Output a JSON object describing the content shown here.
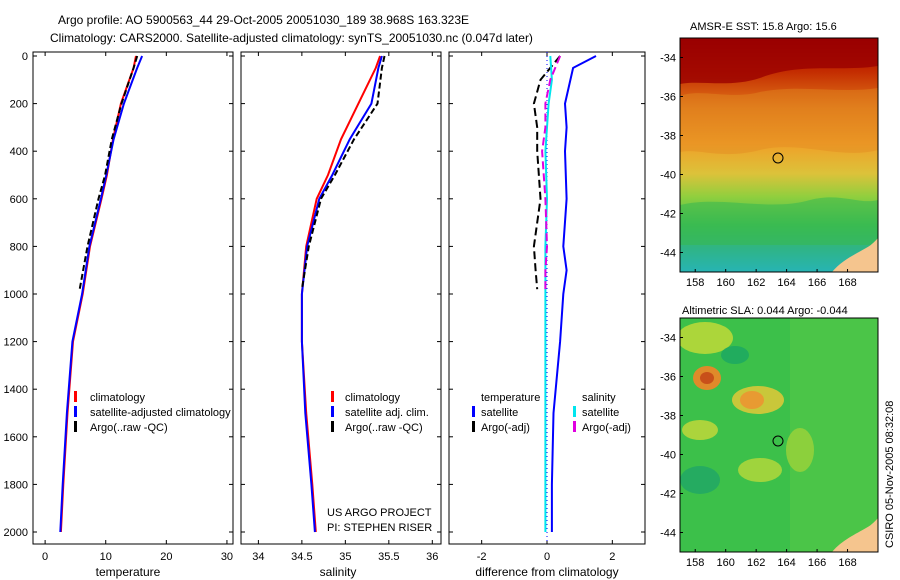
{
  "header": {
    "line1": "Argo profile: AO 5900563_44 29-Oct-2005 20051030_189 38.968S 163.323E",
    "line2": "Climatology: CARS2000. Satellite-adjusted climatology: synTS_20051030.nc (0.047d later)"
  },
  "credit": {
    "line1": "US ARGO PROJECT",
    "line2": "PI: STEPHEN RISER"
  },
  "side_label": "CSIRO 05-Nov-2005 08:32:08",
  "colors": {
    "climatology": "#ff0000",
    "satellite": "#0000ff",
    "argo": "#000000",
    "sat_diff_temp": "#0000ff",
    "sat_diff_sal": "#00e5ee",
    "argo_diff_sal": "#e000e0"
  },
  "chart_data": [
    {
      "type": "line",
      "panel": "temperature",
      "xlabel": "temperature",
      "ylabel": "",
      "xlim": [
        -2,
        31
      ],
      "ylim": [
        2050,
        0
      ],
      "xticks": [
        0,
        10,
        20,
        30
      ],
      "yticks": [
        0,
        200,
        400,
        600,
        800,
        1000,
        1200,
        1400,
        1600,
        1800,
        2000
      ],
      "series": [
        {
          "name": "climatology",
          "x": [
            15.0,
            14.6,
            12.5,
            11.2,
            10.2,
            9.3,
            7.4,
            6.2,
            4.6,
            3.7,
            3.0,
            2.6
          ],
          "y": [
            0,
            50,
            200,
            350,
            500,
            600,
            800,
            1000,
            1200,
            1500,
            1800,
            2000
          ]
        },
        {
          "name": "satellite-adjusted climatology",
          "x": [
            16.0,
            15.2,
            13.0,
            11.3,
            10.1,
            9.2,
            7.3,
            6.1,
            4.5,
            3.6,
            2.9,
            2.5
          ],
          "y": [
            0,
            50,
            200,
            350,
            500,
            600,
            800,
            1000,
            1200,
            1500,
            1800,
            2000
          ]
        },
        {
          "name": "Argo(..raw -QC)",
          "x": [
            15.2,
            14.6,
            12.6,
            11.0,
            9.9,
            8.8,
            7.0,
            5.7
          ],
          "y": [
            0,
            50,
            200,
            350,
            500,
            600,
            800,
            980
          ]
        }
      ],
      "legend": [
        "climatology",
        "satellite-adjusted climatology",
        "Argo(..raw -QC)"
      ]
    },
    {
      "type": "line",
      "panel": "salinity",
      "xlabel": "salinity",
      "ylabel": "",
      "xlim": [
        33.8,
        36.1
      ],
      "ylim": [
        2050,
        0
      ],
      "xticks": [
        34,
        34.5,
        35,
        35.5,
        36
      ],
      "tick_labels": [
        "34",
        "34.5",
        "35",
        "35.5",
        "36"
      ],
      "series": [
        {
          "name": "climatology",
          "x": [
            35.4,
            35.35,
            35.15,
            34.95,
            34.8,
            34.67,
            34.55,
            34.5,
            34.5,
            34.55,
            34.62,
            34.66
          ],
          "y": [
            0,
            50,
            200,
            350,
            500,
            600,
            800,
            1000,
            1200,
            1500,
            1800,
            2000
          ]
        },
        {
          "name": "satellite adj. clim.",
          "x": [
            35.42,
            35.38,
            35.3,
            35.05,
            34.85,
            34.7,
            34.56,
            34.5,
            34.5,
            34.54,
            34.61,
            34.65
          ],
          "y": [
            0,
            50,
            200,
            350,
            500,
            600,
            800,
            1000,
            1200,
            1500,
            1800,
            2000
          ]
        },
        {
          "name": "Argo(..raw -QC)",
          "x": [
            35.45,
            35.42,
            35.37,
            35.1,
            34.88,
            34.72,
            34.58,
            34.5
          ],
          "y": [
            0,
            50,
            200,
            350,
            500,
            600,
            800,
            980
          ]
        }
      ],
      "legend": [
        "climatology",
        "satellite adj. clim.",
        "Argo(..raw -QC)"
      ]
    },
    {
      "type": "line",
      "panel": "difference",
      "xlabel": "difference from climatology",
      "xlim": [
        -3,
        3
      ],
      "ylim": [
        2050,
        0
      ],
      "xticks": [
        -2,
        0,
        2
      ],
      "tick_labels": [
        "-2",
        "0",
        "2"
      ],
      "series": [
        {
          "name": "temperature satellite",
          "x": [
            1.5,
            0.8,
            0.55,
            0.6,
            0.55,
            0.6,
            0.5,
            0.6,
            0.5,
            0.4,
            0.2,
            0.15,
            0.15
          ],
          "y": [
            0,
            50,
            200,
            300,
            400,
            600,
            800,
            900,
            1000,
            1200,
            1500,
            1800,
            2000
          ]
        },
        {
          "name": "temperature Argo(-adj)",
          "x": [
            0.4,
            -0.2,
            -0.4,
            -0.3,
            -0.3,
            -0.2,
            -0.4,
            -0.35,
            -0.3
          ],
          "y": [
            0,
            100,
            200,
            300,
            400,
            600,
            800,
            900,
            980
          ]
        },
        {
          "name": "salinity satellite",
          "x": [
            0.1,
            0.15,
            0.05,
            -0.05,
            0.0,
            -0.05,
            -0.05,
            -0.05,
            -0.05,
            -0.05,
            -0.05
          ],
          "y": [
            0,
            100,
            200,
            400,
            600,
            800,
            1000,
            1200,
            1500,
            1800,
            2000
          ]
        },
        {
          "name": "salinity Argo(-adj)",
          "x": [
            0.4,
            0.1,
            -0.05,
            -0.05,
            -0.15,
            -0.05,
            0.0,
            -0.05,
            -0.05
          ],
          "y": [
            0,
            100,
            200,
            300,
            400,
            600,
            800,
            900,
            980
          ]
        }
      ],
      "legend_headers": [
        "temperature",
        "salinity"
      ],
      "legend": [
        "satellite",
        "Argo(-adj)",
        "satellite",
        "Argo(-adj)"
      ]
    },
    {
      "type": "heatmap",
      "panel": "sst_map",
      "title": "AMSR-E SST: 15.8 Argo: 15.6",
      "xlim": [
        157,
        170
      ],
      "ylim": [
        -45,
        -33
      ],
      "xticks": [
        158,
        160,
        162,
        164,
        166,
        168
      ],
      "yticks": [
        -34,
        -36,
        -38,
        -40,
        -42,
        -44
      ],
      "marker": {
        "lon": 163.323,
        "lat": -38.968
      }
    },
    {
      "type": "heatmap",
      "panel": "sla_map",
      "title": "Altimetric SLA: 0.044 Argo: -0.044",
      "xlim": [
        157,
        170
      ],
      "ylim": [
        -45,
        -33
      ],
      "xticks": [
        158,
        160,
        162,
        164,
        166,
        168
      ],
      "yticks": [
        -34,
        -36,
        -38,
        -40,
        -42,
        -44
      ],
      "marker": {
        "lon": 163.323,
        "lat": -38.968
      }
    }
  ]
}
